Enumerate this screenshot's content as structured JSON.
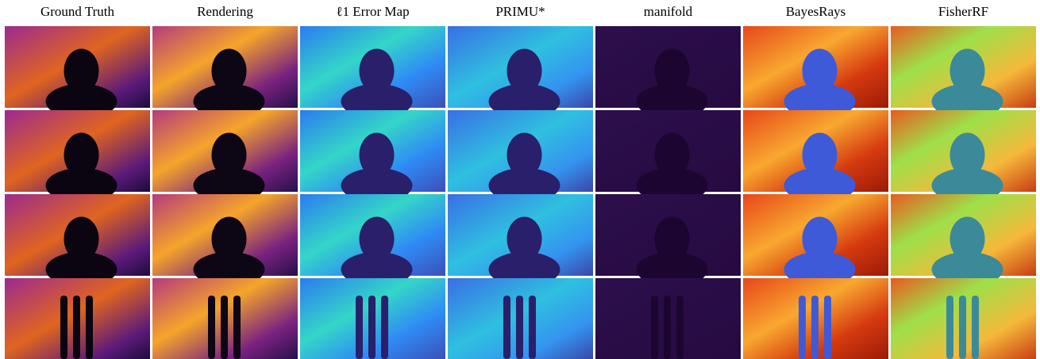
{
  "columns": [
    "Ground Truth",
    "Rendering",
    "ℓ1 Error Map",
    "PRIMU*",
    "manifold",
    "BayesRays",
    "FisherRF"
  ]
}
